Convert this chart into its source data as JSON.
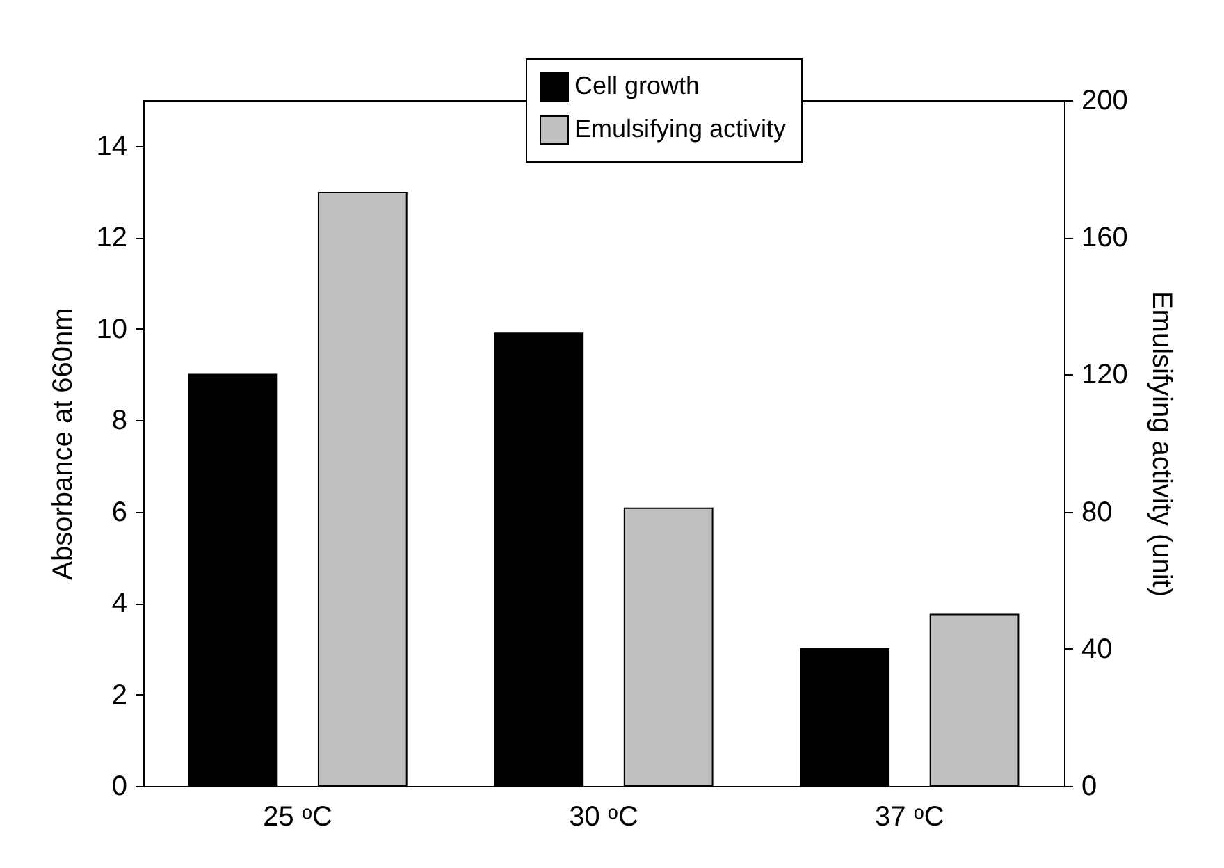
{
  "chart_data": {
    "type": "bar",
    "categories": [
      "25 ᵒC",
      "30 ᵒC",
      "37 ᵒC"
    ],
    "ylabel": "Absorbance at 660nm",
    "y2label": "Emulsifying activity (unit)",
    "ylim": [
      0,
      15
    ],
    "yticks": [
      0,
      2,
      4,
      6,
      8,
      10,
      12,
      14
    ],
    "y2lim": [
      0,
      200
    ],
    "y2ticks": [
      0,
      40,
      80,
      120,
      160,
      200
    ],
    "series": [
      {
        "name": "Cell growth",
        "color": "#000000",
        "values": [
          9.0,
          9.9,
          3.0
        ]
      },
      {
        "name": "Emulsifying activity",
        "color": "#c0c0c0",
        "values": [
          173,
          81,
          50
        ],
        "axis": "y2"
      }
    ],
    "grid": false,
    "legend": "top"
  }
}
